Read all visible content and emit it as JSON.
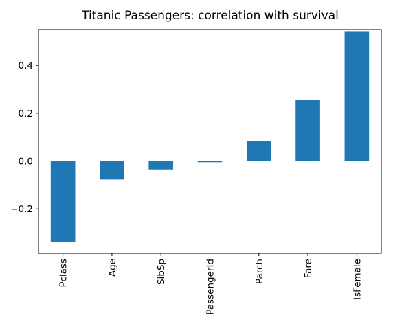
{
  "chart_data": {
    "type": "bar",
    "title": "Titanic Passengers: correlation with survival",
    "xlabel": "",
    "ylabel": "",
    "categories": [
      "Pclass",
      "Age",
      "SibSp",
      "PassengerId",
      "Parch",
      "Fare",
      "IsFemale"
    ],
    "values": [
      -0.338,
      -0.077,
      -0.035,
      -0.005,
      0.082,
      0.257,
      0.543
    ],
    "ylim": [
      -0.386,
      0.55
    ],
    "yticks": [
      -0.2,
      0.0,
      0.2,
      0.4
    ],
    "ytick_labels": [
      "−0.2",
      "0.0",
      "0.2",
      "0.4"
    ],
    "grid": false,
    "bar_color": "#1f77b4"
  }
}
